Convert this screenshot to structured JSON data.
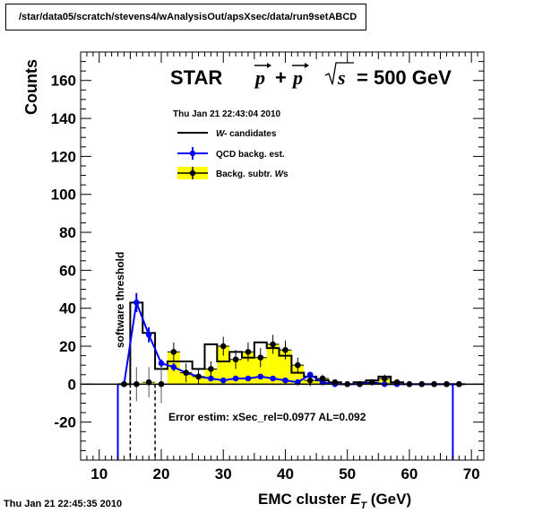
{
  "header": {
    "path": "/star/data05/scratch/stevens4/wAnalysisOut/apsXsec/data/run9setABCD"
  },
  "footer": {
    "timestamp": "Thu Jan 21 22:45:35 2010"
  },
  "colors": {
    "qcd": "#0000ff",
    "fill": "#ffff00",
    "marker": "#000000"
  },
  "chart_data": {
    "type": "histogram",
    "title": "STAR",
    "physics_label_parts": [
      "p",
      "+",
      "p",
      "s",
      "= 500 GeV"
    ],
    "date_label": "Thu Jan 21 22:43:04 2010",
    "xlabel_parts": [
      "EMC cluster ",
      "E",
      "T",
      " (GeV)"
    ],
    "ylabel": "Counts",
    "xlim": [
      7,
      72
    ],
    "ylim": [
      -40,
      175
    ],
    "x_ticks": [
      10,
      20,
      30,
      40,
      50,
      60,
      70
    ],
    "y_ticks": [
      -20,
      0,
      20,
      40,
      60,
      80,
      100,
      120,
      140,
      160
    ],
    "legend": [
      {
        "key": "w",
        "label_main": " candidates",
        "label_italic": "W-"
      },
      {
        "key": "qcd",
        "label_main": "QCD backg. est.",
        "label_italic": ""
      },
      {
        "key": "subtr",
        "label_main": "Backg. subtr. ",
        "label_italic": "W",
        "label_tail": "s"
      }
    ],
    "annotation_vertical": "software threshold",
    "annotation_bottom": "Error estim:  xSec_rel=0.0977    AL=0.092",
    "thresholds": [
      15,
      19
    ],
    "bin_edges": [
      13,
      15,
      17,
      19,
      21,
      23,
      25,
      27,
      29,
      31,
      33,
      35,
      37,
      39,
      41,
      43,
      45,
      47,
      49,
      51,
      53,
      55,
      57,
      59,
      61,
      63,
      65,
      67,
      69
    ],
    "series": [
      {
        "name": "W- candidates",
        "values": [
          0,
          43,
          27,
          8,
          12,
          12,
          8,
          21,
          12,
          17,
          14,
          22,
          19,
          15,
          6,
          4,
          2,
          1,
          0,
          1,
          2,
          4,
          1,
          0,
          0,
          0,
          0,
          0
        ]
      },
      {
        "name": "QCD backg. est.",
        "values": [
          0,
          43,
          26,
          11,
          9,
          6,
          4,
          3,
          2,
          3,
          3,
          4,
          3,
          2,
          1,
          5,
          1,
          0,
          0,
          0,
          1,
          0,
          0,
          0,
          0,
          0,
          0,
          0
        ],
        "errors": [
          0,
          5,
          4,
          2,
          2,
          1,
          1,
          1,
          1,
          1,
          1,
          1,
          1,
          1,
          1,
          1,
          1,
          0,
          0,
          0,
          0,
          0,
          0,
          0,
          0,
          0,
          0,
          0
        ]
      },
      {
        "name": "Backg. subtr. Ws",
        "values": [
          0,
          0,
          1,
          0,
          17,
          6,
          4,
          8,
          20,
          13,
          17,
          14,
          21,
          18,
          10,
          2,
          3,
          1,
          0,
          0,
          1,
          3,
          1,
          0,
          0,
          0,
          0,
          0
        ],
        "errors": [
          0,
          9,
          8,
          10,
          5,
          5,
          4,
          4,
          5,
          5,
          5,
          5,
          5,
          5,
          4,
          3,
          2,
          1,
          1,
          1,
          1,
          2,
          1,
          1,
          1,
          1,
          1,
          1
        ]
      }
    ]
  }
}
